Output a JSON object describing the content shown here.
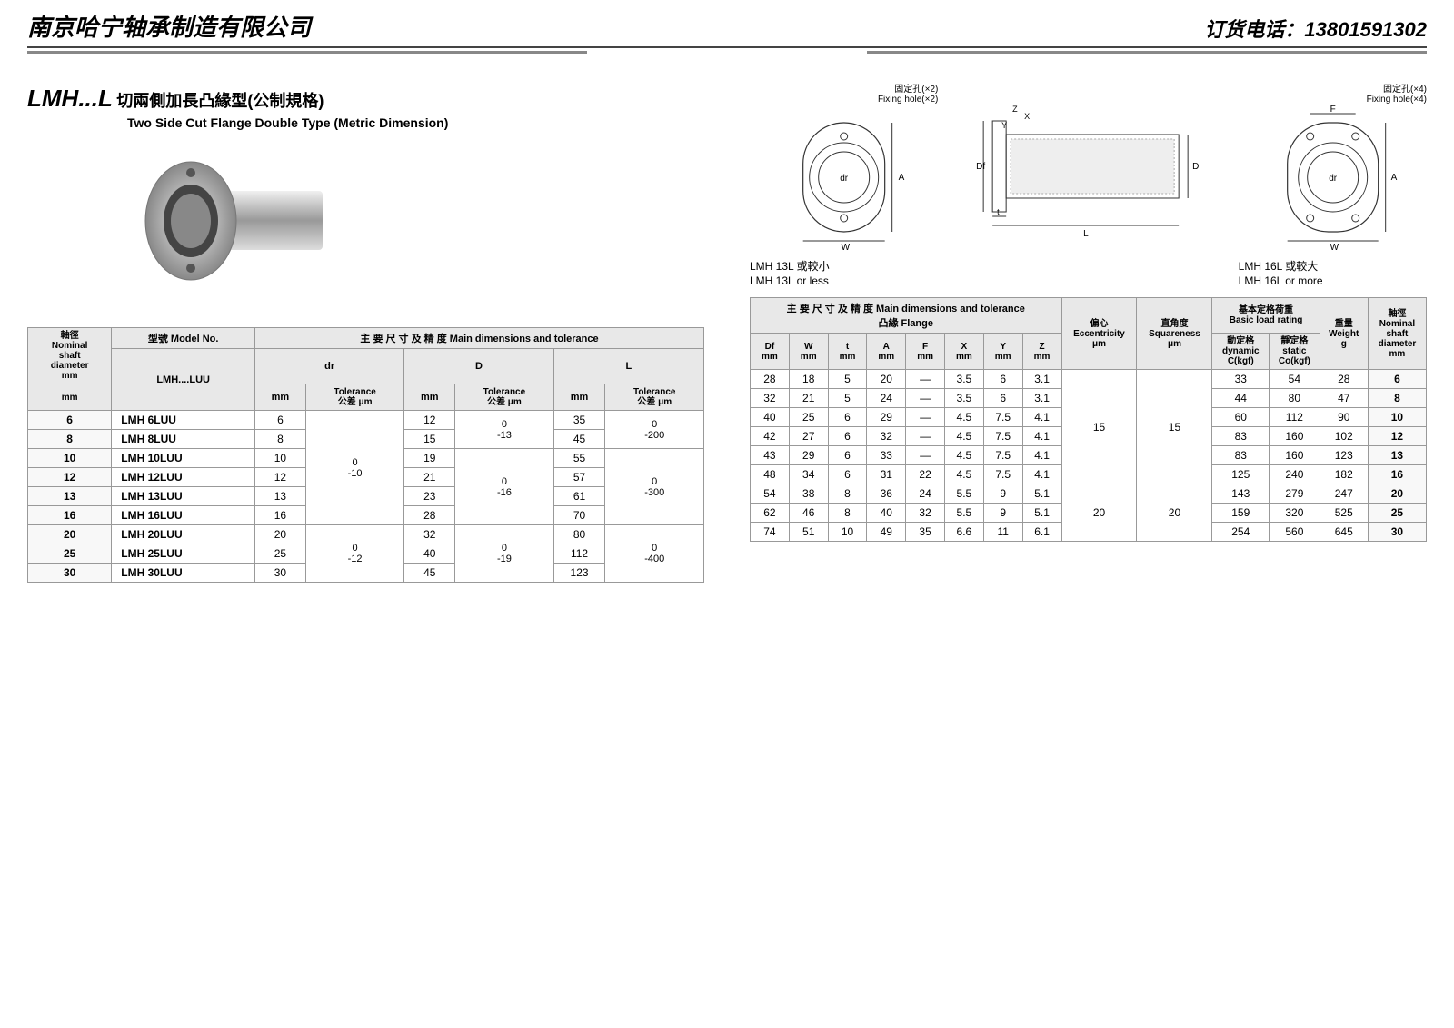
{
  "header": {
    "company": "南京哈宁轴承制造有限公司",
    "phone_label": "订货电话：",
    "phone": "13801591302"
  },
  "title": {
    "code": "LMH...L",
    "cn": "切兩側加長凸緣型(公制規格)",
    "en": "Two Side Cut Flange Double Type (Metric Dimension)"
  },
  "diag_labels": {
    "left_cn": "LMH 13L 或較小",
    "left_en": "LMH 13L or less",
    "mid_fix2_cn": "固定孔(×2)",
    "mid_fix2_en": "Fixing hole(×2)",
    "right_cn": "LMH 16L 或較大",
    "right_en": "LMH 16L or more",
    "fix4_cn": "固定孔(×4)",
    "fix4_en": "Fixing hole(×4)"
  },
  "table_left": {
    "headers": {
      "shaft_cn": "軸徑",
      "shaft_en1": "Nominal",
      "shaft_en2": "shaft",
      "shaft_en3": "diameter",
      "shaft_unit": "mm",
      "model_cn": "型號 Model No.",
      "model_sub": "LMH....LUU",
      "main_cn": "主 要 尺 寸 及 精 度",
      "main_en": "Main dimensions and tolerance",
      "dr": "dr",
      "D": "D",
      "L": "L",
      "mm": "mm",
      "tol": "Tolerance",
      "tol_cn": "公差 μm"
    },
    "rows": [
      {
        "d": "6",
        "model": "LMH 6LUU",
        "dr": "6",
        "D": "12",
        "Dtu": "0",
        "Dtl": "-13",
        "L": "35"
      },
      {
        "d": "8",
        "model": "LMH 8LUU",
        "dr": "8",
        "D": "15",
        "L": "45"
      },
      {
        "d": "10",
        "model": "LMH 10LUU",
        "dr": "10",
        "D": "19",
        "L": "55"
      },
      {
        "d": "12",
        "model": "LMH 12LUU",
        "dr": "12",
        "D": "21",
        "L": "57"
      },
      {
        "d": "13",
        "model": "LMH 13LUU",
        "dr": "13",
        "D": "23",
        "L": "61"
      },
      {
        "d": "16",
        "model": "LMH 16LUU",
        "dr": "16",
        "D": "28",
        "L": "70"
      },
      {
        "d": "20",
        "model": "LMH 20LUU",
        "dr": "20",
        "D": "32",
        "L": "80"
      },
      {
        "d": "25",
        "model": "LMH 25LUU",
        "dr": "25",
        "D": "40",
        "L": "112"
      },
      {
        "d": "30",
        "model": "LMH 30LUU",
        "dr": "30",
        "D": "45",
        "L": "123"
      }
    ],
    "dr_tol": {
      "u": "0",
      "l": "-10"
    },
    "dr_tol2": {
      "u": "0",
      "l": "-12"
    },
    "D_tol1": {
      "u": "0",
      "l": "-13"
    },
    "D_tol2": {
      "u": "0",
      "l": "-16"
    },
    "D_tol3": {
      "u": "0",
      "l": "-19"
    },
    "L_tol1": {
      "u": "0",
      "l": "-200"
    },
    "L_tol2": {
      "u": "0",
      "l": "-300"
    },
    "L_tol3": {
      "u": "0",
      "l": "-400"
    }
  },
  "table_right": {
    "headers": {
      "main": "主 要 尺 寸 及 精 度 Main dimensions and tolerance",
      "flange_cn": "凸緣 Flange",
      "Df": "Df",
      "W": "W",
      "t": "t",
      "A": "A",
      "F": "F",
      "X": "X",
      "Y": "Y",
      "Z": "Z",
      "mm": "mm",
      "ecc_cn": "偏心",
      "ecc_en": "Eccentricity",
      "mu": "μm",
      "sq_cn": "直角度",
      "sq_en": "Squareness",
      "load_cn": "基本定格荷重",
      "load_en": "Basic load rating",
      "dyn_cn": "動定格",
      "dyn_en": "dynamic",
      "dyn_u": "C(kgf)",
      "sta_cn": "靜定格",
      "sta_en": "static",
      "sta_u": "Co(kgf)",
      "wt_cn": "重量",
      "wt_en": "Weight",
      "wt_u": "g",
      "shaft_cn": "軸徑",
      "shaft_en1": "Nominal",
      "shaft_en2": "shaft",
      "shaft_en3": "diameter",
      "shaft_unit": "mm"
    },
    "rows": [
      {
        "Df": "28",
        "W": "18",
        "t": "5",
        "A": "20",
        "F": "—",
        "X": "3.5",
        "Y": "6",
        "Z": "3.1",
        "C": "33",
        "Co": "54",
        "g": "28",
        "d": "6"
      },
      {
        "Df": "32",
        "W": "21",
        "t": "5",
        "A": "24",
        "F": "—",
        "X": "3.5",
        "Y": "6",
        "Z": "3.1",
        "C": "44",
        "Co": "80",
        "g": "47",
        "d": "8"
      },
      {
        "Df": "40",
        "W": "25",
        "t": "6",
        "A": "29",
        "F": "—",
        "X": "4.5",
        "Y": "7.5",
        "Z": "4.1",
        "C": "60",
        "Co": "112",
        "g": "90",
        "d": "10"
      },
      {
        "Df": "42",
        "W": "27",
        "t": "6",
        "A": "32",
        "F": "—",
        "X": "4.5",
        "Y": "7.5",
        "Z": "4.1",
        "C": "83",
        "Co": "160",
        "g": "102",
        "d": "12"
      },
      {
        "Df": "43",
        "W": "29",
        "t": "6",
        "A": "33",
        "F": "—",
        "X": "4.5",
        "Y": "7.5",
        "Z": "4.1",
        "C": "83",
        "Co": "160",
        "g": "123",
        "d": "13"
      },
      {
        "Df": "48",
        "W": "34",
        "t": "6",
        "A": "31",
        "F": "22",
        "X": "4.5",
        "Y": "7.5",
        "Z": "4.1",
        "C": "125",
        "Co": "240",
        "g": "182",
        "d": "16"
      },
      {
        "Df": "54",
        "W": "38",
        "t": "8",
        "A": "36",
        "F": "24",
        "X": "5.5",
        "Y": "9",
        "Z": "5.1",
        "C": "143",
        "Co": "279",
        "g": "247",
        "d": "20"
      },
      {
        "Df": "62",
        "W": "46",
        "t": "8",
        "A": "40",
        "F": "32",
        "X": "5.5",
        "Y": "9",
        "Z": "5.1",
        "C": "159",
        "Co": "320",
        "g": "525",
        "d": "25"
      },
      {
        "Df": "74",
        "W": "51",
        "t": "10",
        "A": "49",
        "F": "35",
        "X": "6.6",
        "Y": "11",
        "Z": "6.1",
        "C": "254",
        "Co": "560",
        "g": "645",
        "d": "30"
      }
    ],
    "ecc1": "15",
    "sq1": "15",
    "ecc2": "20",
    "sq2": "20"
  }
}
